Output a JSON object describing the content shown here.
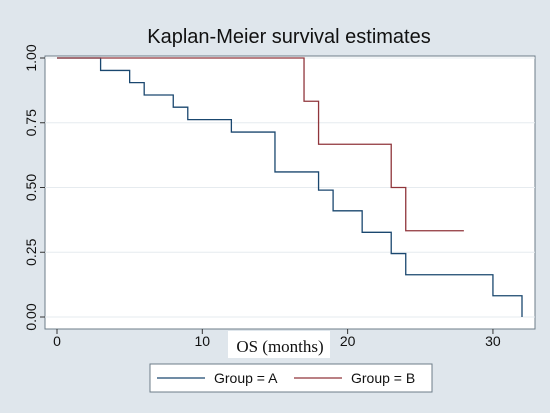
{
  "chart_data": {
    "type": "line",
    "title": "Kaplan-Meier survival estimates",
    "xlabel": "OS (months)",
    "ylabel": "",
    "xlim": [
      0,
      32
    ],
    "ylim": [
      0,
      1
    ],
    "x_ticks": [
      0,
      10,
      20,
      30
    ],
    "x_tick_labels": [
      "0",
      "10",
      "20",
      "30"
    ],
    "y_ticks": [
      0,
      0.25,
      0.5,
      0.75,
      1
    ],
    "y_tick_labels": [
      "0.00",
      "0.25",
      "0.50",
      "0.75",
      "1.00"
    ],
    "grid": "horizontal",
    "legend_position": "bottom",
    "step": true,
    "series": [
      {
        "name": "Group = A",
        "color": "#1a476f",
        "x": [
          0,
          3,
          5,
          6,
          8,
          9,
          12,
          15,
          18,
          19,
          21,
          23,
          24,
          30,
          32
        ],
        "y": [
          1.0,
          0.952,
          0.905,
          0.857,
          0.81,
          0.762,
          0.714,
          0.56,
          0.49,
          0.41,
          0.327,
          0.245,
          0.163,
          0.082,
          0.0
        ]
      },
      {
        "name": "Group = B",
        "color": "#90353b",
        "x": [
          0,
          17,
          18,
          23,
          24,
          28
        ],
        "y": [
          1.0,
          0.833,
          0.667,
          0.5,
          0.333,
          0.333
        ]
      }
    ]
  }
}
